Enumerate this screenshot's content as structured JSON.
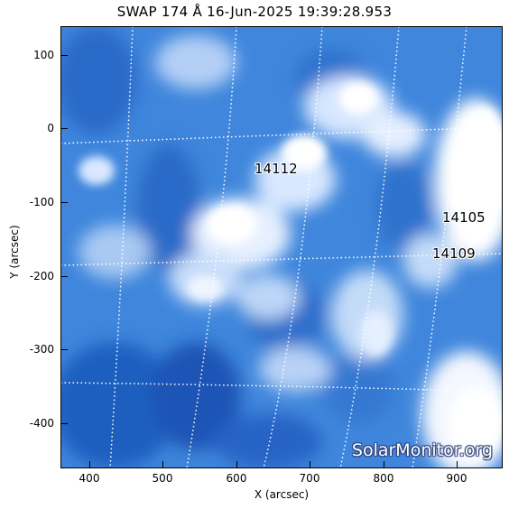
{
  "title": "SWAP 174 Å 16-Jun-2025 19:39:28.953",
  "x_axis": {
    "label": "X (arcsec)",
    "ticks": [
      400,
      500,
      600,
      700,
      800,
      900
    ],
    "range": [
      357,
      962
    ]
  },
  "y_axis": {
    "label": "Y (arcsec)",
    "ticks": [
      100,
      0,
      -100,
      -200,
      -300,
      -400
    ],
    "range": [
      -460,
      138
    ]
  },
  "active_regions": [
    {
      "id": "14112",
      "x": 640,
      "y": -55
    },
    {
      "id": "14105",
      "x": 915,
      "y": -118
    },
    {
      "id": "14109",
      "x": 900,
      "y": -172
    }
  ],
  "watermark": "SolarMonitor.org",
  "colors": {
    "background": "#ffffff",
    "image_base": "#3b80d8",
    "image_dark": "#1a55b5",
    "image_bright": "#eaf3ff",
    "grid": "#ffffff"
  }
}
